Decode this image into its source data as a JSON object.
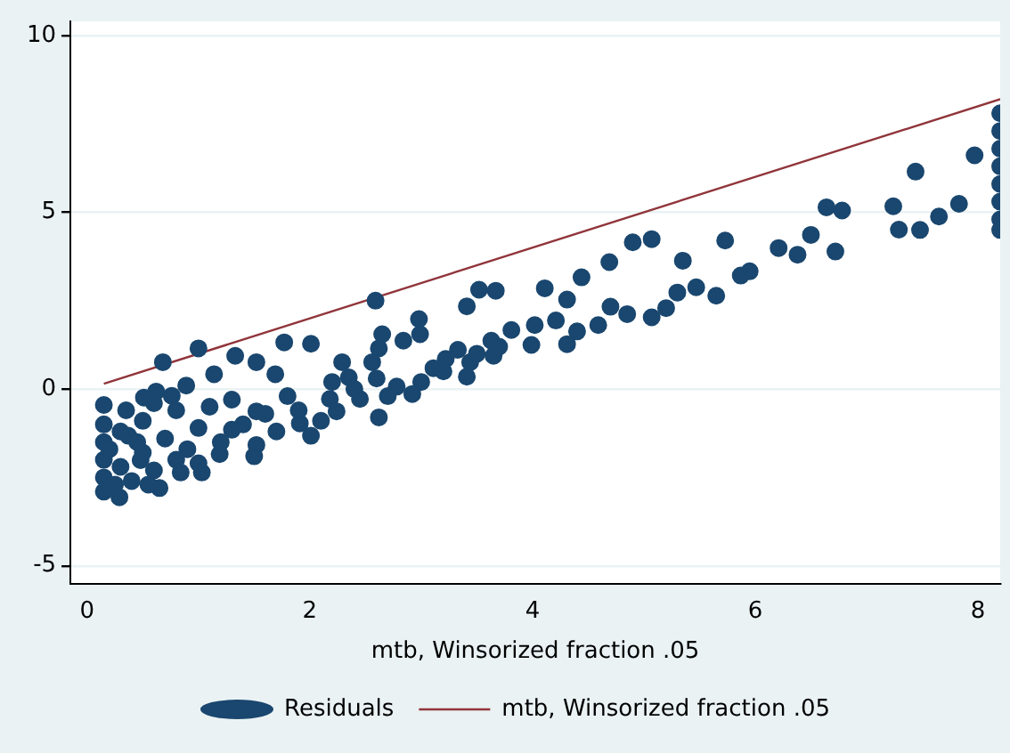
{
  "chart_data": {
    "type": "scatter",
    "xlabel": "mtb, Winsorized fraction .05",
    "xlim": [
      -0.15,
      8.2
    ],
    "xticks": [
      0,
      2,
      4,
      6,
      8
    ],
    "ylim": [
      -5.5,
      10.4
    ],
    "yticks": [
      -5,
      0,
      5,
      10
    ],
    "grid": "y",
    "legend": "bottom",
    "series": [
      {
        "name": "Residuals",
        "marker": "circle",
        "color": "#1a476f",
        "x": [
          2.59,
          3.52,
          3.67,
          3.41,
          4.11,
          4.44,
          4.9,
          5.07,
          5.73,
          5.35,
          4.69,
          6.21,
          6.5,
          6.64,
          6.78,
          7.24,
          7.44,
          7.29,
          7.48,
          7.65,
          7.83,
          7.97,
          6.72,
          6.38,
          5.95,
          5.87,
          5.65,
          5.47,
          5.3,
          5.2,
          5.07,
          4.85,
          4.7,
          4.59,
          4.4,
          4.31,
          4.31,
          4.21,
          3.99,
          4.02,
          3.81,
          3.65,
          3.63,
          3.44,
          3.41,
          3.22,
          2.98,
          2.99,
          2.84,
          2.65,
          2.62,
          2.92,
          2.62,
          2.56,
          2.35,
          2.29,
          2.18,
          2.01,
          2.01,
          1.77,
          1.69,
          1.52,
          1.52,
          1.33,
          1.3,
          1,
          1.14,
          0.89,
          0.76,
          0.68,
          0.51,
          0.62,
          0.65,
          0.29,
          0.84,
          1.03,
          0.48,
          0.37,
          1.19,
          1.52,
          1.91,
          2.24,
          2.45,
          2.78,
          3.11,
          3.33,
          0.15,
          0.15,
          0.15,
          0.15,
          0.15,
          0.15,
          8.2,
          8.2,
          8.2,
          8.2,
          8.2,
          8.2,
          8.2,
          8.2,
          0.3,
          0.3,
          0.4,
          0.5,
          0.5,
          0.6,
          0.7,
          0.8,
          0.8,
          0.9,
          1,
          1,
          1.1,
          1.2,
          1.3,
          1.4,
          1.5,
          1.6,
          1.7,
          1.8,
          1.9,
          2.1,
          2.2,
          2.4,
          2.6,
          2.7,
          3,
          3.2,
          3.5,
          3.7,
          0.25,
          0.35,
          0.45,
          0.55,
          0.6,
          0.2
        ],
        "values": [
          2.5,
          2.81,
          2.78,
          2.34,
          2.85,
          3.16,
          4.15,
          4.24,
          4.2,
          3.63,
          3.59,
          3.99,
          4.36,
          5.14,
          5.05,
          5.17,
          6.15,
          4.51,
          4.5,
          4.88,
          5.24,
          6.61,
          3.89,
          3.8,
          3.33,
          3.21,
          2.64,
          2.88,
          2.73,
          2.29,
          2.03,
          2.12,
          2.33,
          1.81,
          1.63,
          1.27,
          2.53,
          1.94,
          1.25,
          1.81,
          1.67,
          0.94,
          1.37,
          0.76,
          0.35,
          0.85,
          1.98,
          1.55,
          1.37,
          1.55,
          1.15,
          -0.14,
          -0.8,
          0.76,
          0.33,
          0.76,
          -0.28,
          1.28,
          -1.32,
          1.32,
          0.42,
          0.76,
          -0.63,
          0.94,
          -1.15,
          1.15,
          0.42,
          0.1,
          -0.19,
          0.76,
          -0.24,
          -0.07,
          -2.8,
          -3.06,
          -2.36,
          -2.36,
          -2.01,
          -1.32,
          -1.84,
          -1.58,
          -0.97,
          -0.63,
          -0.28,
          0.07,
          0.59,
          1.11,
          -2.9,
          -2.5,
          -2,
          -1.5,
          -1,
          -0.45,
          7.8,
          7.3,
          6.8,
          6.3,
          5.8,
          5.3,
          4.8,
          4.5,
          -2.2,
          -1.2,
          -2.6,
          -1.8,
          -0.9,
          -2.3,
          -1.4,
          -2,
          -0.6,
          -1.7,
          -1.1,
          -2.1,
          -0.5,
          -1.5,
          -0.3,
          -1,
          -1.9,
          -0.7,
          -1.2,
          -0.2,
          -0.6,
          -0.9,
          0.2,
          0,
          0.3,
          -0.2,
          0.2,
          0.5,
          1,
          1.2,
          -2.7,
          -0.6,
          -1.5,
          -2.7,
          -0.4,
          -1.7
        ]
      },
      {
        "name": "mtb, Winsorized fraction .05",
        "type": "line",
        "marker": "none",
        "color": "#90353b",
        "x": [
          0.15,
          8.2
        ],
        "values": [
          0.15,
          8.2
        ]
      }
    ]
  }
}
